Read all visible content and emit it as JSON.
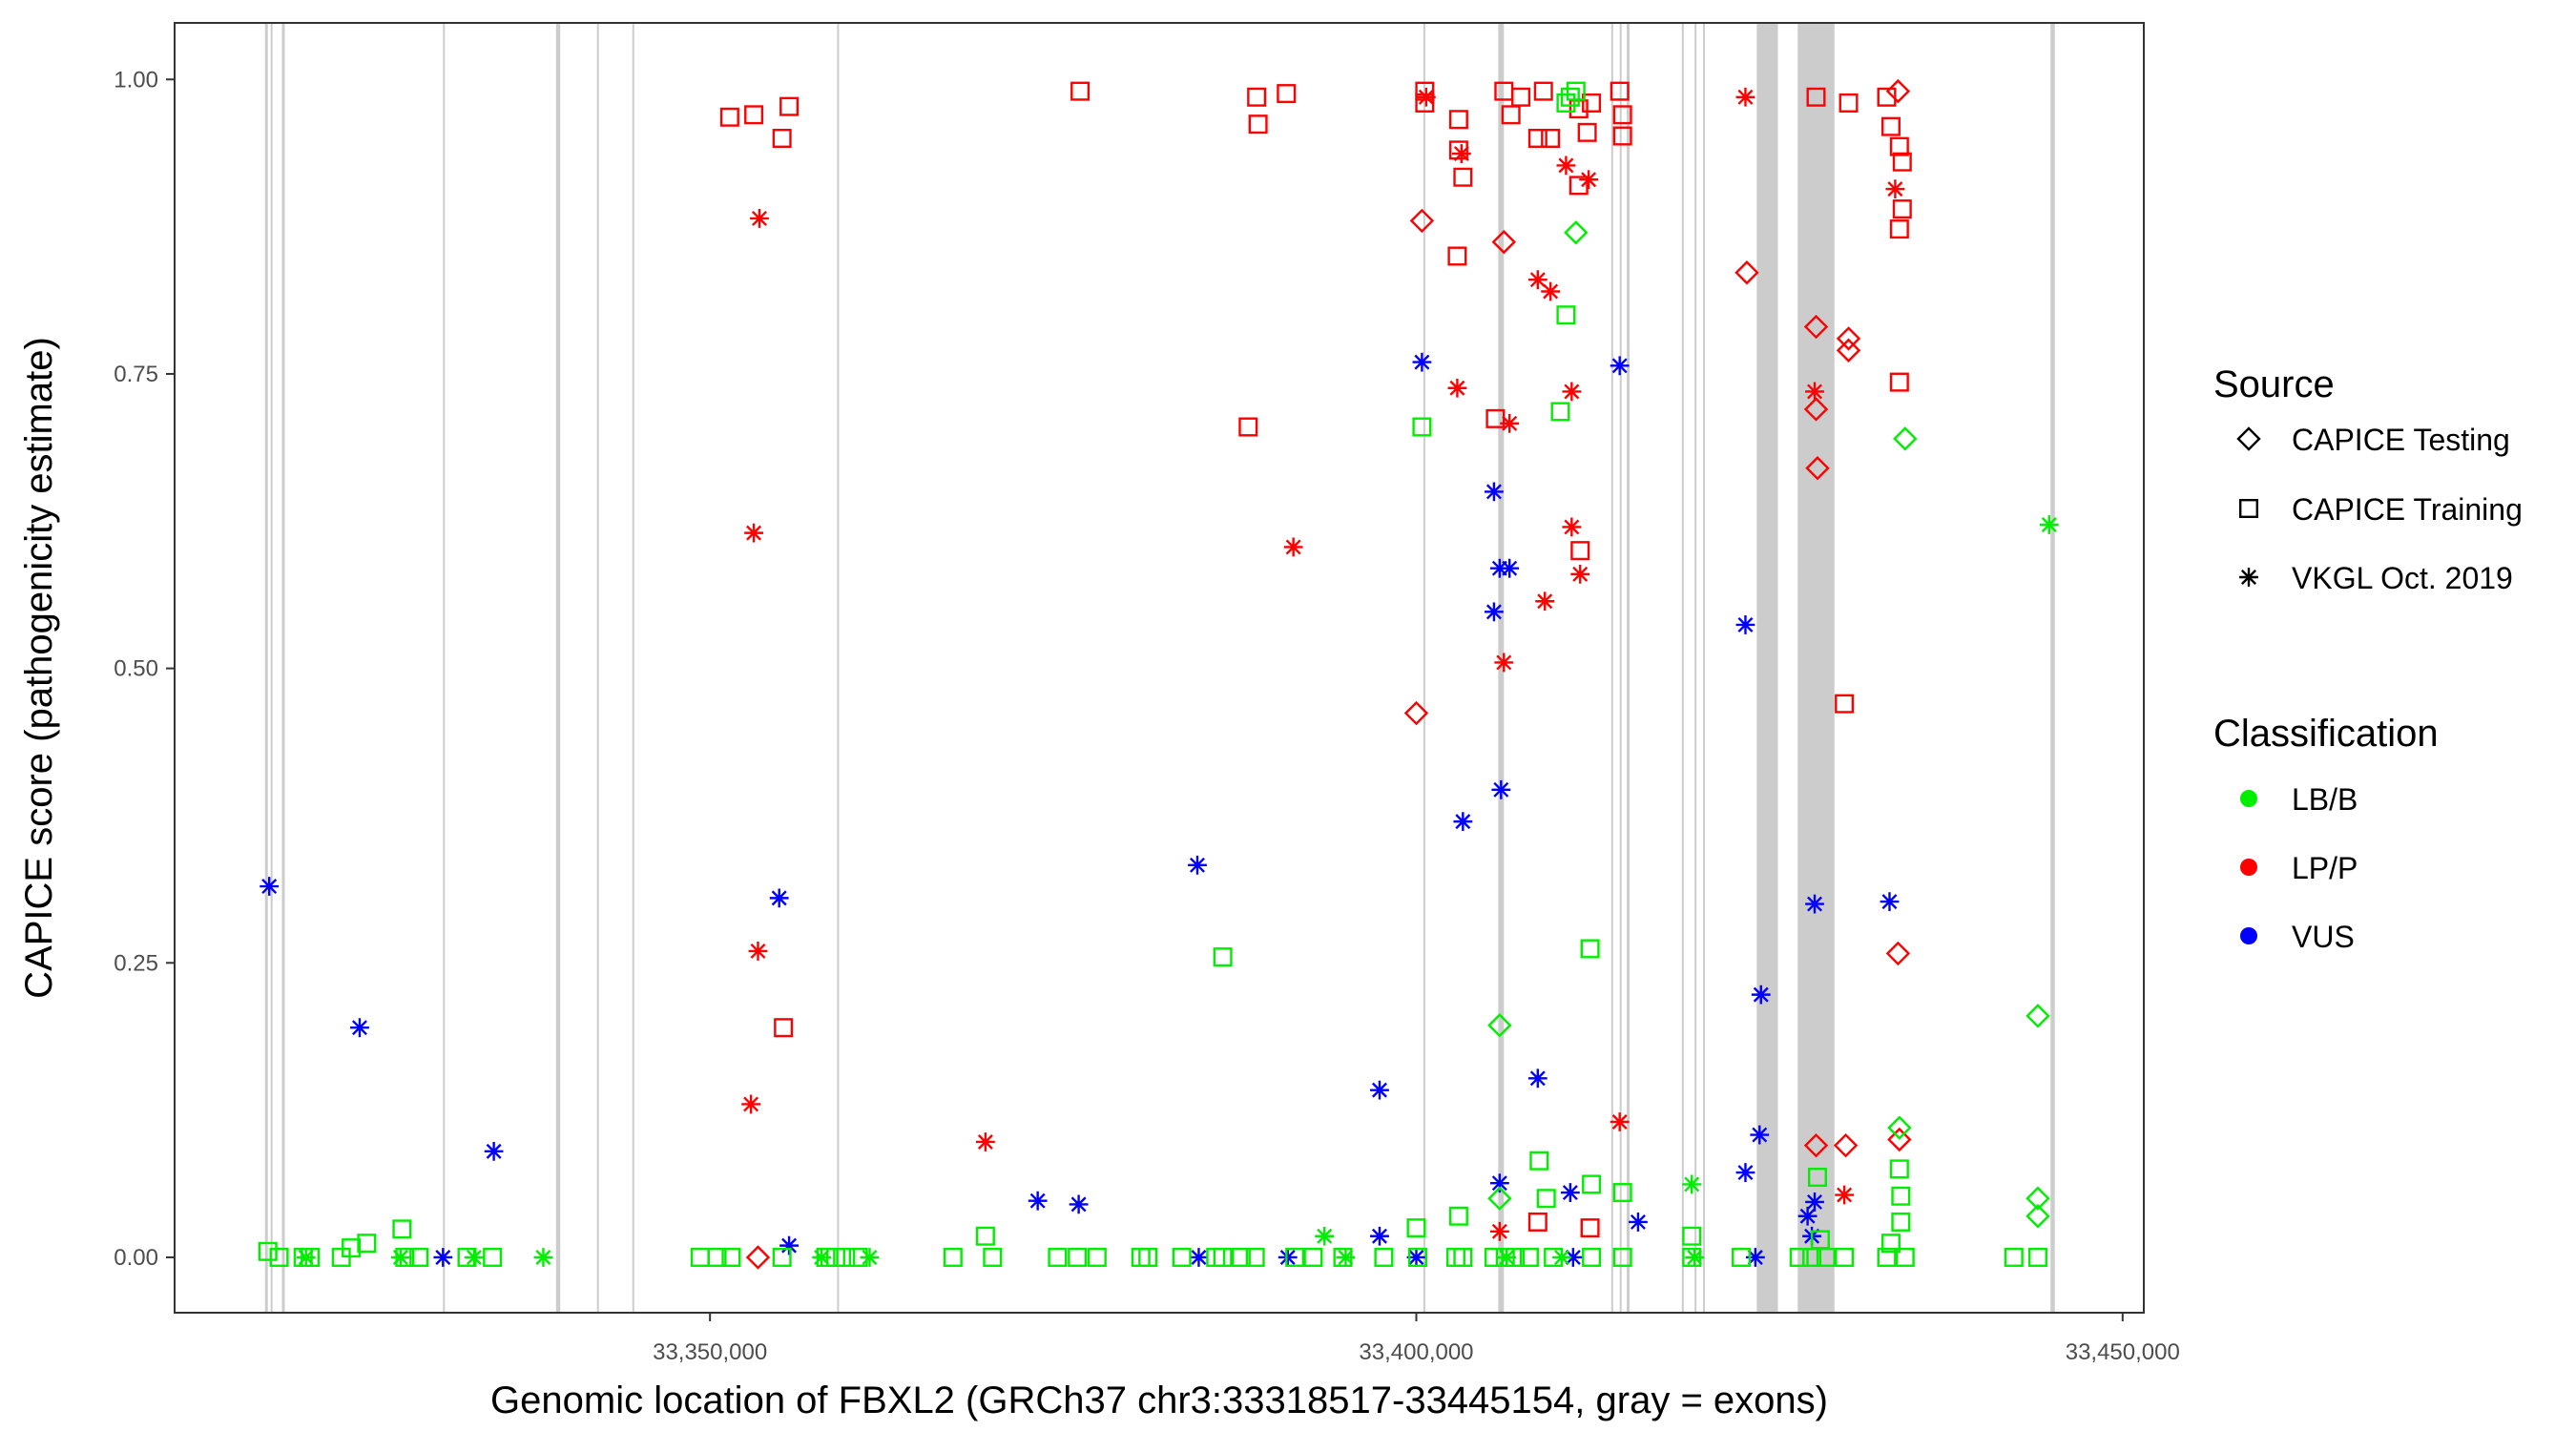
{
  "chart_data": {
    "type": "scatter",
    "title": "",
    "xlabel": "Genomic location of FBXL2 (GRCh37 chr3:33318517-33445154, gray = exons)",
    "ylabel": "CAPICE score (pathogenicity estimate)",
    "xlim": [
      33312100,
      33451500
    ],
    "ylim": [
      -0.047,
      1.048
    ],
    "x_ticks": [
      33350000,
      33400000,
      33450000
    ],
    "x_tick_labels": [
      "33,350,000",
      "33,400,000",
      "33,450,000"
    ],
    "y_ticks": [
      0,
      0.25,
      0.5,
      0.75,
      1.0
    ],
    "y_tick_labels": [
      "0.00",
      "0.25",
      "0.50",
      "0.75",
      "1.00"
    ],
    "grid": false,
    "legend_placement": "right",
    "exons": [
      [
        33318500,
        33318700
      ],
      [
        33318900,
        33319000
      ],
      [
        33319700,
        33319900
      ],
      [
        33331100,
        33331200
      ],
      [
        33339100,
        33339400
      ],
      [
        33342000,
        33342100
      ],
      [
        33344500,
        33344600
      ],
      [
        33359000,
        33359100
      ],
      [
        33400500,
        33400600
      ],
      [
        33405800,
        33406200
      ],
      [
        33413800,
        33413900
      ],
      [
        33414400,
        33414500
      ],
      [
        33414900,
        33415100
      ],
      [
        33418800,
        33418900
      ],
      [
        33419700,
        33419800
      ],
      [
        33420300,
        33420400
      ],
      [
        33424100,
        33425600
      ],
      [
        33427000,
        33429600
      ],
      [
        33444900,
        33445200
      ]
    ],
    "legend": {
      "source_title": "Source",
      "sources": [
        {
          "key": "T",
          "label": "CAPICE Testing",
          "shape": "diamond"
        },
        {
          "key": "R",
          "label": "CAPICE Training",
          "shape": "square"
        },
        {
          "key": "V",
          "label": "VKGL Oct. 2019",
          "shape": "asterisk"
        }
      ],
      "class_title": "Classification",
      "classes": [
        {
          "key": "B",
          "label": "LB/B",
          "color": "#00ee00"
        },
        {
          "key": "P",
          "label": "LP/P",
          "color": "#ff0000"
        },
        {
          "key": "U",
          "label": "VUS",
          "color": "#0000ff"
        }
      ]
    },
    "points": [
      [
        33318800,
        0.315,
        "V",
        "U"
      ],
      [
        33325200,
        0.195,
        "V",
        "U"
      ],
      [
        33334700,
        0.09,
        "V",
        "U"
      ],
      [
        33331100,
        0,
        "V",
        "U"
      ],
      [
        33354900,
        0.305,
        "V",
        "U"
      ],
      [
        33355600,
        0.01,
        "V",
        "U"
      ],
      [
        33373200,
        0.048,
        "V",
        "U"
      ],
      [
        33376100,
        0.045,
        "V",
        "U"
      ],
      [
        33384500,
        0.333,
        "V",
        "U"
      ],
      [
        33384600,
        0,
        "V",
        "U"
      ],
      [
        33390900,
        0,
        "V",
        "U"
      ],
      [
        33397400,
        0.142,
        "V",
        "U"
      ],
      [
        33397400,
        0.018,
        "V",
        "U"
      ],
      [
        33400000,
        0,
        "V",
        "U"
      ],
      [
        33400400,
        0.76,
        "V",
        "U"
      ],
      [
        33403300,
        0.37,
        "V",
        "U"
      ],
      [
        33405500,
        0.65,
        "V",
        "U"
      ],
      [
        33405500,
        0.548,
        "V",
        "U"
      ],
      [
        33405900,
        0.585,
        "V",
        "U"
      ],
      [
        33406600,
        0.585,
        "V",
        "U"
      ],
      [
        33406000,
        0.397,
        "V",
        "U"
      ],
      [
        33405900,
        0.063,
        "V",
        "U"
      ],
      [
        33408600,
        0.152,
        "V",
        "U"
      ],
      [
        33410900,
        0.055,
        "V",
        "U"
      ],
      [
        33411100,
        0,
        "V",
        "U"
      ],
      [
        33414400,
        0.757,
        "V",
        "U"
      ],
      [
        33415700,
        0.03,
        "V",
        "U"
      ],
      [
        33423300,
        0.537,
        "V",
        "U"
      ],
      [
        33423300,
        0.072,
        "V",
        "U"
      ],
      [
        33424000,
        0,
        "V",
        "U"
      ],
      [
        33424400,
        0.223,
        "V",
        "U"
      ],
      [
        33424300,
        0.104,
        "V",
        "U"
      ],
      [
        33428200,
        0.3,
        "V",
        "U"
      ],
      [
        33428200,
        0.047,
        "V",
        "U"
      ],
      [
        33427700,
        0.035,
        "V",
        "U"
      ],
      [
        33428000,
        0.018,
        "V",
        "U"
      ],
      [
        33433500,
        0.302,
        "V",
        "U"
      ],
      [
        33353500,
        0.882,
        "V",
        "P"
      ],
      [
        33353100,
        0.615,
        "V",
        "P"
      ],
      [
        33353400,
        0.26,
        "V",
        "P"
      ],
      [
        33352900,
        0.13,
        "V",
        "P"
      ],
      [
        33369500,
        0.098,
        "V",
        "P"
      ],
      [
        33391300,
        0.603,
        "V",
        "P"
      ],
      [
        33402900,
        0.738,
        "V",
        "P"
      ],
      [
        33403200,
        0.937,
        "V",
        "P"
      ],
      [
        33406600,
        0.708,
        "V",
        "P"
      ],
      [
        33406200,
        0.505,
        "V",
        "P"
      ],
      [
        33409100,
        0.557,
        "V",
        "P"
      ],
      [
        33411000,
        0.62,
        "V",
        "P"
      ],
      [
        33411600,
        0.58,
        "V",
        "P"
      ],
      [
        33411000,
        0.735,
        "V",
        "P"
      ],
      [
        33408600,
        0.83,
        "V",
        "P"
      ],
      [
        33409500,
        0.82,
        "V",
        "P"
      ],
      [
        33410600,
        0.927,
        "V",
        "P"
      ],
      [
        33412200,
        0.915,
        "V",
        "P"
      ],
      [
        33414400,
        0.115,
        "V",
        "P"
      ],
      [
        33423300,
        0.985,
        "V",
        "P"
      ],
      [
        33428200,
        0.735,
        "V",
        "P"
      ],
      [
        33430300,
        0.053,
        "V",
        "P"
      ],
      [
        33433900,
        0.907,
        "V",
        "P"
      ],
      [
        33400700,
        0.985,
        "V",
        "P"
      ],
      [
        33405900,
        0.022,
        "V",
        "P"
      ],
      [
        33351400,
        0.968,
        "R",
        "P"
      ],
      [
        33353100,
        0.97,
        "R",
        "P"
      ],
      [
        33355100,
        0.95,
        "R",
        "P"
      ],
      [
        33355600,
        0.977,
        "R",
        "P"
      ],
      [
        33355200,
        0.195,
        "R",
        "P"
      ],
      [
        33376200,
        0.99,
        "R",
        "P"
      ],
      [
        33388100,
        0.705,
        "R",
        "P"
      ],
      [
        33388700,
        0.985,
        "R",
        "P"
      ],
      [
        33388800,
        0.962,
        "R",
        "P"
      ],
      [
        33390800,
        0.988,
        "R",
        "P"
      ],
      [
        33400600,
        0.99,
        "R",
        "P"
      ],
      [
        33400600,
        0.98,
        "R",
        "P"
      ],
      [
        33402900,
        0.85,
        "R",
        "P"
      ],
      [
        33403000,
        0.966,
        "R",
        "P"
      ],
      [
        33403300,
        0.917,
        "R",
        "P"
      ],
      [
        33403000,
        0.94,
        "R",
        "P"
      ],
      [
        33405600,
        0.712,
        "R",
        "P"
      ],
      [
        33406200,
        0.99,
        "R",
        "P"
      ],
      [
        33406700,
        0.97,
        "R",
        "P"
      ],
      [
        33407400,
        0.985,
        "R",
        "P"
      ],
      [
        33408600,
        0.95,
        "R",
        "P"
      ],
      [
        33409000,
        0.99,
        "R",
        "P"
      ],
      [
        33409500,
        0.95,
        "R",
        "P"
      ],
      [
        33411500,
        0.975,
        "R",
        "P"
      ],
      [
        33411500,
        0.91,
        "R",
        "P"
      ],
      [
        33411600,
        0.6,
        "R",
        "P"
      ],
      [
        33412100,
        0.955,
        "R",
        "P"
      ],
      [
        33412400,
        0.98,
        "R",
        "P"
      ],
      [
        33414400,
        0.99,
        "R",
        "P"
      ],
      [
        33414600,
        0.97,
        "R",
        "P"
      ],
      [
        33414600,
        0.952,
        "R",
        "P"
      ],
      [
        33428300,
        0.985,
        "R",
        "P"
      ],
      [
        33430600,
        0.98,
        "R",
        "P"
      ],
      [
        33430300,
        0.47,
        "R",
        "P"
      ],
      [
        33433300,
        0.985,
        "R",
        "P"
      ],
      [
        33433600,
        0.96,
        "R",
        "P"
      ],
      [
        33434200,
        0.943,
        "R",
        "P"
      ],
      [
        33434400,
        0.93,
        "R",
        "P"
      ],
      [
        33434400,
        0.89,
        "R",
        "P"
      ],
      [
        33434200,
        0.873,
        "R",
        "P"
      ],
      [
        33434200,
        0.743,
        "R",
        "P"
      ],
      [
        33408600,
        0.03,
        "R",
        "P"
      ],
      [
        33412300,
        0.025,
        "R",
        "P"
      ],
      [
        33353400,
        0,
        "T",
        "P"
      ],
      [
        33400400,
        0.88,
        "T",
        "P"
      ],
      [
        33400000,
        0.462,
        "T",
        "P"
      ],
      [
        33406200,
        0.862,
        "T",
        "P"
      ],
      [
        33423400,
        0.836,
        "T",
        "P"
      ],
      [
        33428300,
        0.79,
        "T",
        "P"
      ],
      [
        33428300,
        0.72,
        "T",
        "P"
      ],
      [
        33428400,
        0.67,
        "T",
        "P"
      ],
      [
        33430600,
        0.78,
        "T",
        "P"
      ],
      [
        33430600,
        0.77,
        "T",
        "P"
      ],
      [
        33434100,
        0.99,
        "T",
        "P"
      ],
      [
        33434100,
        0.258,
        "T",
        "P"
      ],
      [
        33434200,
        0.1,
        "T",
        "P"
      ],
      [
        33428300,
        0.095,
        "T",
        "P"
      ],
      [
        33430400,
        0.095,
        "T",
        "P"
      ],
      [
        33411300,
        0.87,
        "T",
        "B"
      ],
      [
        33405900,
        0.197,
        "T",
        "B"
      ],
      [
        33434600,
        0.695,
        "T",
        "B"
      ],
      [
        33444000,
        0.205,
        "T",
        "B"
      ],
      [
        33444000,
        0.05,
        "T",
        "B"
      ],
      [
        33444000,
        0.035,
        "T",
        "B"
      ],
      [
        33405900,
        0.05,
        "T",
        "B"
      ],
      [
        33434200,
        0.11,
        "T",
        "B"
      ],
      [
        33410600,
        0.8,
        "R",
        "B"
      ],
      [
        33410200,
        0.718,
        "R",
        "B"
      ],
      [
        33400400,
        0.705,
        "R",
        "B"
      ],
      [
        33386300,
        0.255,
        "R",
        "B"
      ],
      [
        33412300,
        0.262,
        "R",
        "B"
      ],
      [
        33328200,
        0.024,
        "R",
        "B"
      ],
      [
        33325700,
        0.012,
        "R",
        "B"
      ],
      [
        33324600,
        0.008,
        "R",
        "B"
      ],
      [
        33318700,
        0.005,
        "R",
        "B"
      ],
      [
        33369500,
        0.018,
        "R",
        "B"
      ],
      [
        33408700,
        0.082,
        "R",
        "B"
      ],
      [
        33409200,
        0.05,
        "R",
        "B"
      ],
      [
        33414600,
        0.055,
        "R",
        "B"
      ],
      [
        33412400,
        0.062,
        "R",
        "B"
      ],
      [
        33400000,
        0.025,
        "R",
        "B"
      ],
      [
        33403000,
        0.035,
        "R",
        "B"
      ],
      [
        33428400,
        0.068,
        "R",
        "B"
      ],
      [
        33434200,
        0.075,
        "R",
        "B"
      ],
      [
        33434300,
        0.052,
        "R",
        "B"
      ],
      [
        33434300,
        0.03,
        "R",
        "B"
      ],
      [
        33433600,
        0.012,
        "R",
        "B"
      ],
      [
        33419500,
        0.018,
        "R",
        "B"
      ],
      [
        33428600,
        0.015,
        "R",
        "B"
      ],
      [
        33411300,
        0.99,
        "R",
        "B"
      ],
      [
        33410900,
        0.985,
        "R",
        "B"
      ],
      [
        33410600,
        0.98,
        "R",
        "B"
      ],
      [
        33319500,
        0,
        "R",
        "B"
      ],
      [
        33321200,
        0,
        "R",
        "B"
      ],
      [
        33321700,
        0,
        "R",
        "B"
      ],
      [
        33323900,
        0,
        "R",
        "B"
      ],
      [
        33328400,
        0,
        "R",
        "B"
      ],
      [
        33329400,
        0,
        "R",
        "B"
      ],
      [
        33332800,
        0,
        "R",
        "B"
      ],
      [
        33334600,
        0,
        "R",
        "B"
      ],
      [
        33349300,
        0,
        "R",
        "B"
      ],
      [
        33350500,
        0,
        "R",
        "B"
      ],
      [
        33351500,
        0,
        "R",
        "B"
      ],
      [
        33355100,
        0,
        "R",
        "B"
      ],
      [
        33358200,
        0,
        "R",
        "B"
      ],
      [
        33358900,
        0,
        "R",
        "B"
      ],
      [
        33359600,
        0,
        "R",
        "B"
      ],
      [
        33360500,
        0,
        "R",
        "B"
      ],
      [
        33367200,
        0,
        "R",
        "B"
      ],
      [
        33370000,
        0,
        "R",
        "B"
      ],
      [
        33374600,
        0,
        "R",
        "B"
      ],
      [
        33376000,
        0,
        "R",
        "B"
      ],
      [
        33377400,
        0,
        "R",
        "B"
      ],
      [
        33380500,
        0,
        "R",
        "B"
      ],
      [
        33381000,
        0,
        "R",
        "B"
      ],
      [
        33383400,
        0,
        "R",
        "B"
      ],
      [
        33385800,
        0,
        "R",
        "B"
      ],
      [
        33386300,
        0,
        "R",
        "B"
      ],
      [
        33387600,
        0,
        "R",
        "B"
      ],
      [
        33388600,
        0,
        "R",
        "B"
      ],
      [
        33391400,
        0,
        "R",
        "B"
      ],
      [
        33392700,
        0,
        "R",
        "B"
      ],
      [
        33394800,
        0,
        "R",
        "B"
      ],
      [
        33397700,
        0,
        "R",
        "B"
      ],
      [
        33400100,
        0,
        "R",
        "B"
      ],
      [
        33402800,
        0,
        "R",
        "B"
      ],
      [
        33403300,
        0,
        "R",
        "B"
      ],
      [
        33405500,
        0,
        "R",
        "B"
      ],
      [
        33406300,
        0,
        "R",
        "B"
      ],
      [
        33407000,
        0,
        "R",
        "B"
      ],
      [
        33408000,
        0,
        "R",
        "B"
      ],
      [
        33409700,
        0,
        "R",
        "B"
      ],
      [
        33412400,
        0,
        "R",
        "B"
      ],
      [
        33414600,
        0,
        "R",
        "B"
      ],
      [
        33419500,
        0,
        "R",
        "B"
      ],
      [
        33423000,
        0,
        "R",
        "B"
      ],
      [
        33427100,
        0,
        "R",
        "B"
      ],
      [
        33428000,
        0,
        "R",
        "B"
      ],
      [
        33429000,
        0,
        "R",
        "B"
      ],
      [
        33430300,
        0,
        "R",
        "B"
      ],
      [
        33433300,
        0,
        "R",
        "B"
      ],
      [
        33434600,
        0,
        "R",
        "B"
      ],
      [
        33442300,
        0,
        "R",
        "B"
      ],
      [
        33444000,
        0,
        "R",
        "B"
      ],
      [
        33338200,
        0,
        "V",
        "B"
      ],
      [
        33328100,
        0,
        "V",
        "B"
      ],
      [
        33333300,
        0,
        "V",
        "B"
      ],
      [
        33393500,
        0.018,
        "V",
        "B"
      ],
      [
        33419500,
        0.062,
        "V",
        "B"
      ],
      [
        33444800,
        0.622,
        "V",
        "B"
      ],
      [
        33395000,
        0,
        "V",
        "B"
      ],
      [
        33357900,
        0,
        "V",
        "B"
      ],
      [
        33361300,
        0,
        "V",
        "B"
      ],
      [
        33321400,
        0,
        "V",
        "B"
      ],
      [
        33419700,
        0,
        "V",
        "B"
      ],
      [
        33406400,
        0,
        "V",
        "B"
      ],
      [
        33410300,
        0,
        "V",
        "B"
      ]
    ]
  }
}
